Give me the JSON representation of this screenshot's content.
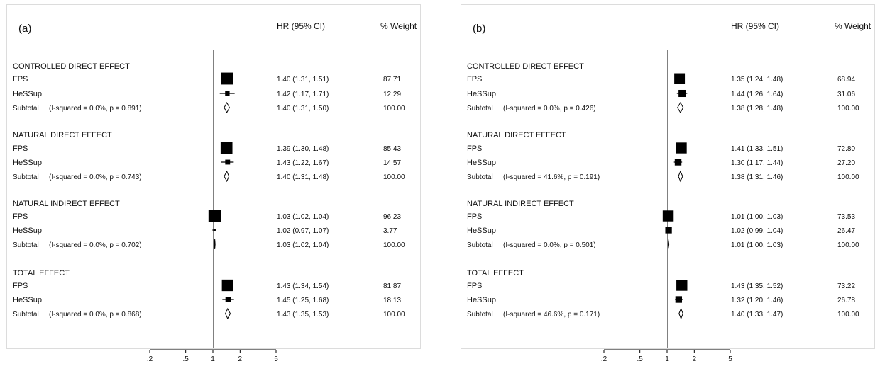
{
  "chart_data": [
    {
      "type": "forest",
      "panel_label": "(a)",
      "column_headers": {
        "hr": "HR (95% CI)",
        "weight": "% Weight"
      },
      "x_scale": "log",
      "x_ticks": [
        ".2",
        ".5",
        "1",
        "2",
        "5"
      ],
      "x_tick_values": [
        0.2,
        0.5,
        1,
        2,
        5
      ],
      "xlim": [
        0.2,
        5
      ],
      "reference_line": 1,
      "groups": [
        {
          "title": "CONTROLLED DIRECT EFFECT",
          "rows": [
            {
              "label": "FPS",
              "hr": 1.4,
              "lo": 1.31,
              "hi": 1.51,
              "ci_text": "1.40 (1.31, 1.51)",
              "weight": "87.71",
              "weight_value": 87.71
            },
            {
              "label": "HeSSup",
              "hr": 1.42,
              "lo": 1.17,
              "hi": 1.71,
              "ci_text": "1.42 (1.17, 1.71)",
              "weight": "12.29",
              "weight_value": 12.29
            }
          ],
          "subtotal": {
            "label": "Subtotal",
            "stat": "(I-squared = 0.0%, p = 0.891)",
            "hr": 1.4,
            "lo": 1.31,
            "hi": 1.5,
            "ci_text": "1.40 (1.31, 1.50)",
            "weight": "100.00"
          }
        },
        {
          "title": "NATURAL DIRECT EFFECT",
          "rows": [
            {
              "label": "FPS",
              "hr": 1.39,
              "lo": 1.3,
              "hi": 1.48,
              "ci_text": "1.39 (1.30, 1.48)",
              "weight": "85.43",
              "weight_value": 85.43
            },
            {
              "label": "HeSSup",
              "hr": 1.43,
              "lo": 1.22,
              "hi": 1.67,
              "ci_text": "1.43 (1.22, 1.67)",
              "weight": "14.57",
              "weight_value": 14.57
            }
          ],
          "subtotal": {
            "label": "Subtotal",
            "stat": "(I-squared = 0.0%, p = 0.743)",
            "hr": 1.4,
            "lo": 1.31,
            "hi": 1.48,
            "ci_text": "1.40 (1.31, 1.48)",
            "weight": "100.00"
          }
        },
        {
          "title": "NATURAL INDIRECT EFFECT",
          "rows": [
            {
              "label": "FPS",
              "hr": 1.03,
              "lo": 1.02,
              "hi": 1.04,
              "ci_text": "1.03 (1.02, 1.04)",
              "weight": "96.23",
              "weight_value": 96.23
            },
            {
              "label": "HeSSup",
              "hr": 1.02,
              "lo": 0.97,
              "hi": 1.07,
              "ci_text": "1.02 (0.97, 1.07)",
              "weight": "3.77",
              "weight_value": 3.77
            }
          ],
          "subtotal": {
            "label": "Subtotal",
            "stat": "(I-squared = 0.0%, p = 0.702)",
            "hr": 1.03,
            "lo": 1.02,
            "hi": 1.04,
            "ci_text": "1.03 (1.02, 1.04)",
            "weight": "100.00"
          }
        },
        {
          "title": "TOTAL EFFECT",
          "rows": [
            {
              "label": "FPS",
              "hr": 1.43,
              "lo": 1.34,
              "hi": 1.54,
              "ci_text": "1.43 (1.34, 1.54)",
              "weight": "81.87",
              "weight_value": 81.87
            },
            {
              "label": "HeSSup",
              "hr": 1.45,
              "lo": 1.25,
              "hi": 1.68,
              "ci_text": "1.45 (1.25, 1.68)",
              "weight": "18.13",
              "weight_value": 18.13
            }
          ],
          "subtotal": {
            "label": "Subtotal",
            "stat": "(I-squared = 0.0%, p = 0.868)",
            "hr": 1.43,
            "lo": 1.35,
            "hi": 1.53,
            "ci_text": "1.43 (1.35, 1.53)",
            "weight": "100.00"
          }
        }
      ]
    },
    {
      "type": "forest",
      "panel_label": "(b)",
      "column_headers": {
        "hr": "HR (95% CI)",
        "weight": "% Weight"
      },
      "x_scale": "log",
      "x_ticks": [
        ".2",
        ".5",
        "1",
        "2",
        "5"
      ],
      "x_tick_values": [
        0.2,
        0.5,
        1,
        2,
        5
      ],
      "xlim": [
        0.2,
        5
      ],
      "reference_line": 1,
      "groups": [
        {
          "title": "CONTROLLED DIRECT EFFECT",
          "rows": [
            {
              "label": "FPS",
              "hr": 1.35,
              "lo": 1.24,
              "hi": 1.48,
              "ci_text": "1.35 (1.24, 1.48)",
              "weight": "68.94",
              "weight_value": 68.94
            },
            {
              "label": "HeSSup",
              "hr": 1.44,
              "lo": 1.26,
              "hi": 1.64,
              "ci_text": "1.44 (1.26, 1.64)",
              "weight": "31.06",
              "weight_value": 31.06
            }
          ],
          "subtotal": {
            "label": "Subtotal",
            "stat": "(I-squared = 0.0%, p = 0.426)",
            "hr": 1.38,
            "lo": 1.28,
            "hi": 1.48,
            "ci_text": "1.38 (1.28, 1.48)",
            "weight": "100.00"
          }
        },
        {
          "title": "NATURAL DIRECT EFFECT",
          "rows": [
            {
              "label": "FPS",
              "hr": 1.41,
              "lo": 1.33,
              "hi": 1.51,
              "ci_text": "1.41 (1.33, 1.51)",
              "weight": "72.80",
              "weight_value": 72.8
            },
            {
              "label": "HeSSup",
              "hr": 1.3,
              "lo": 1.17,
              "hi": 1.44,
              "ci_text": "1.30 (1.17, 1.44)",
              "weight": "27.20",
              "weight_value": 27.2
            }
          ],
          "subtotal": {
            "label": "Subtotal",
            "stat": "(I-squared = 41.6%, p = 0.191)",
            "hr": 1.38,
            "lo": 1.31,
            "hi": 1.46,
            "ci_text": "1.38 (1.31, 1.46)",
            "weight": "100.00"
          }
        },
        {
          "title": "NATURAL INDIRECT EFFECT",
          "rows": [
            {
              "label": "FPS",
              "hr": 1.01,
              "lo": 1.0,
              "hi": 1.03,
              "ci_text": "1.01 (1.00, 1.03)",
              "weight": "73.53",
              "weight_value": 73.53
            },
            {
              "label": "HeSSup",
              "hr": 1.02,
              "lo": 0.99,
              "hi": 1.04,
              "ci_text": "1.02 (0.99, 1.04)",
              "weight": "26.47",
              "weight_value": 26.47
            }
          ],
          "subtotal": {
            "label": "Subtotal",
            "stat": "(I-squared = 0.0%, p = 0.501)",
            "hr": 1.01,
            "lo": 1.0,
            "hi": 1.03,
            "ci_text": "1.01 (1.00, 1.03)",
            "weight": "100.00"
          }
        },
        {
          "title": "TOTAL EFFECT",
          "rows": [
            {
              "label": "FPS",
              "hr": 1.43,
              "lo": 1.35,
              "hi": 1.52,
              "ci_text": "1.43 (1.35, 1.52)",
              "weight": "73.22",
              "weight_value": 73.22
            },
            {
              "label": "HeSSup",
              "hr": 1.32,
              "lo": 1.2,
              "hi": 1.46,
              "ci_text": "1.32 (1.20, 1.46)",
              "weight": "26.78",
              "weight_value": 26.78
            }
          ],
          "subtotal": {
            "label": "Subtotal",
            "stat": "(I-squared = 46.6%, p = 0.171)",
            "hr": 1.4,
            "lo": 1.33,
            "hi": 1.47,
            "ci_text": "1.40 (1.33, 1.47)",
            "weight": "100.00"
          }
        }
      ]
    }
  ]
}
